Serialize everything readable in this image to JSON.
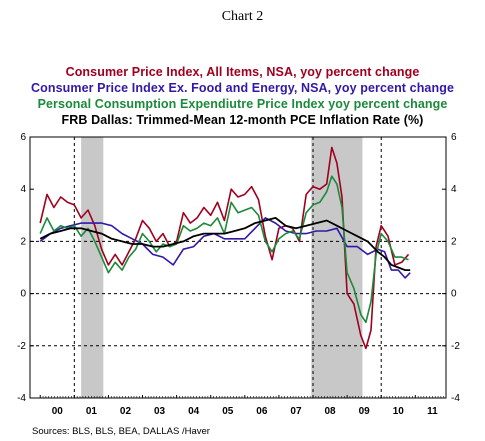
{
  "header": {
    "title": "Chart 2"
  },
  "footer": {
    "sources": "Sources:  BLS, BLS, BEA, DALLAS /Haver"
  },
  "chart_data": {
    "type": "line",
    "title": "Chart 2",
    "x_labels": [
      "00",
      "01",
      "02",
      "03",
      "04",
      "05",
      "06",
      "07",
      "08",
      "09",
      "10",
      "11"
    ],
    "y_ticks": [
      -4,
      -2,
      0,
      2,
      4,
      6
    ],
    "ylim": [
      -4,
      6
    ],
    "xlim": [
      1999.7,
      2011.9
    ],
    "grid": "dashed reference lines at 2, 0 and -2; dashed vertical lines at start of 2001, 2008, 2010",
    "recession_shading": [
      {
        "start": 2001.2,
        "end": 2001.85
      },
      {
        "start": 2007.95,
        "end": 2009.45
      }
    ],
    "series": [
      {
        "name": "Consumer Price Index, All Items, NSA, yoy percent change",
        "color": "#a0001e",
        "x": [
          2000.0,
          2000.2,
          2000.4,
          2000.6,
          2000.8,
          2001.0,
          2001.2,
          2001.4,
          2001.6,
          2001.8,
          2002.0,
          2002.2,
          2002.4,
          2002.6,
          2002.8,
          2003.0,
          2003.2,
          2003.4,
          2003.6,
          2003.8,
          2004.0,
          2004.2,
          2004.4,
          2004.6,
          2004.8,
          2005.0,
          2005.2,
          2005.4,
          2005.6,
          2005.8,
          2006.0,
          2006.2,
          2006.4,
          2006.6,
          2006.8,
          2007.0,
          2007.2,
          2007.4,
          2007.6,
          2007.8,
          2008.0,
          2008.2,
          2008.4,
          2008.55,
          2008.7,
          2008.85,
          2009.0,
          2009.2,
          2009.4,
          2009.55,
          2009.7,
          2009.85,
          2010.0,
          2010.2,
          2010.4,
          2010.6,
          2010.8
        ],
        "values": [
          2.7,
          3.8,
          3.3,
          3.7,
          3.5,
          3.4,
          2.9,
          3.2,
          2.6,
          1.7,
          1.1,
          1.5,
          1.1,
          1.6,
          2.1,
          2.8,
          2.5,
          2.0,
          2.3,
          1.8,
          2.0,
          3.1,
          2.7,
          2.9,
          3.3,
          3.0,
          3.5,
          2.8,
          4.0,
          3.7,
          3.8,
          4.1,
          3.6,
          2.2,
          1.3,
          2.5,
          2.6,
          2.5,
          2.0,
          3.8,
          4.1,
          4.0,
          4.2,
          5.6,
          5.0,
          3.7,
          0.0,
          -0.4,
          -1.6,
          -2.1,
          -1.4,
          1.8,
          2.6,
          2.2,
          1.1,
          1.2,
          1.5
        ]
      },
      {
        "name": "Consumer Price Index Ex. Food and Energy, NSA, yoy percent change",
        "color": "#3318a8",
        "x": [
          2000.0,
          2000.3,
          2000.6,
          2000.9,
          2001.2,
          2001.5,
          2001.8,
          2002.1,
          2002.4,
          2002.7,
          2003.0,
          2003.3,
          2003.6,
          2003.9,
          2004.2,
          2004.5,
          2004.8,
          2005.1,
          2005.4,
          2005.7,
          2006.0,
          2006.3,
          2006.6,
          2006.9,
          2007.2,
          2007.5,
          2007.8,
          2008.1,
          2008.4,
          2008.7,
          2009.0,
          2009.3,
          2009.6,
          2009.9,
          2010.1,
          2010.3,
          2010.5,
          2010.7,
          2010.85
        ],
        "values": [
          2.0,
          2.3,
          2.5,
          2.6,
          2.7,
          2.7,
          2.7,
          2.6,
          2.3,
          2.1,
          1.9,
          1.5,
          1.4,
          1.1,
          1.7,
          1.8,
          2.2,
          2.3,
          2.1,
          2.1,
          2.1,
          2.5,
          2.9,
          2.7,
          2.4,
          2.3,
          2.3,
          2.4,
          2.4,
          2.5,
          1.8,
          1.8,
          1.5,
          1.7,
          1.6,
          0.9,
          0.9,
          0.6,
          0.8
        ]
      },
      {
        "name": "Personal Consumption Expendiutre Price Index  yoy  percent change",
        "color": "#1b8a3a",
        "x": [
          2000.0,
          2000.2,
          2000.4,
          2000.6,
          2000.8,
          2001.0,
          2001.2,
          2001.4,
          2001.6,
          2001.8,
          2002.0,
          2002.2,
          2002.4,
          2002.6,
          2002.8,
          2003.0,
          2003.2,
          2003.4,
          2003.6,
          2003.8,
          2004.0,
          2004.2,
          2004.4,
          2004.6,
          2004.8,
          2005.0,
          2005.2,
          2005.4,
          2005.6,
          2005.8,
          2006.0,
          2006.2,
          2006.4,
          2006.6,
          2006.8,
          2007.0,
          2007.2,
          2007.4,
          2007.6,
          2007.8,
          2008.0,
          2008.2,
          2008.4,
          2008.55,
          2008.7,
          2008.85,
          2009.0,
          2009.2,
          2009.4,
          2009.55,
          2009.7,
          2009.85,
          2010.0,
          2010.2,
          2010.4,
          2010.6,
          2010.8
        ],
        "values": [
          2.3,
          2.9,
          2.4,
          2.6,
          2.5,
          2.6,
          2.2,
          2.5,
          2.0,
          1.4,
          0.8,
          1.2,
          0.9,
          1.4,
          1.7,
          2.3,
          2.0,
          1.6,
          1.9,
          1.8,
          1.9,
          2.6,
          2.4,
          2.5,
          2.7,
          2.6,
          2.9,
          2.3,
          3.5,
          3.1,
          3.2,
          3.3,
          3.0,
          2.0,
          1.6,
          2.1,
          2.3,
          2.4,
          2.1,
          3.1,
          3.4,
          3.5,
          3.9,
          4.5,
          4.2,
          3.3,
          0.8,
          0.2,
          -0.8,
          -1.1,
          -0.3,
          1.5,
          2.3,
          2.0,
          1.4,
          1.4,
          1.3
        ]
      },
      {
        "name": "FRB Dallas: Trimmed-Mean 12-month PCE Inflation Rate (%)",
        "color": "#000000",
        "x": [
          2000.0,
          2000.3,
          2000.6,
          2000.9,
          2001.2,
          2001.5,
          2001.8,
          2002.1,
          2002.4,
          2002.7,
          2003.0,
          2003.3,
          2003.6,
          2003.9,
          2004.2,
          2004.5,
          2004.8,
          2005.1,
          2005.4,
          2005.7,
          2006.0,
          2006.3,
          2006.6,
          2006.9,
          2007.2,
          2007.5,
          2007.8,
          2008.1,
          2008.4,
          2008.7,
          2009.0,
          2009.3,
          2009.6,
          2009.9,
          2010.1,
          2010.3,
          2010.5,
          2010.7,
          2010.85
        ],
        "values": [
          2.1,
          2.3,
          2.4,
          2.5,
          2.5,
          2.4,
          2.3,
          2.1,
          2.0,
          1.9,
          1.9,
          1.8,
          1.8,
          1.9,
          2.0,
          2.2,
          2.3,
          2.3,
          2.3,
          2.4,
          2.5,
          2.7,
          2.8,
          2.9,
          2.6,
          2.5,
          2.6,
          2.7,
          2.8,
          2.6,
          2.4,
          2.2,
          2.0,
          1.6,
          1.4,
          1.1,
          1.0,
          0.9,
          0.9
        ]
      }
    ]
  }
}
